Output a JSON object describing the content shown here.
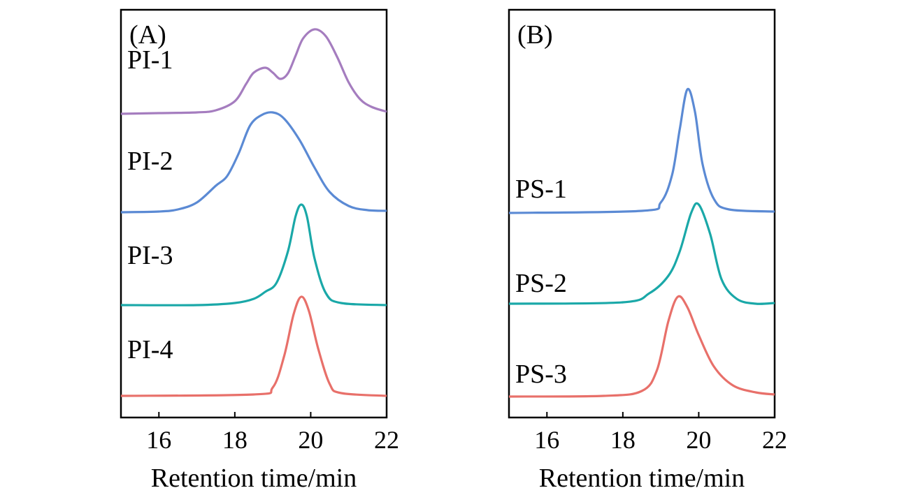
{
  "chart_data": [
    {
      "type": "line",
      "panel_label": "(A)",
      "xlabel": "Retention time/min",
      "ylabel": "",
      "xlim": [
        15,
        22
      ],
      "ylim": [
        0,
        5.84
      ],
      "xticks": [
        "16",
        "18",
        "20",
        "22"
      ],
      "xtick_values": [
        16,
        18,
        20,
        22
      ],
      "y_units": "relative intensity (stacked, arbitrary units)",
      "grid": false,
      "series": [
        {
          "name": "PI-1",
          "color": "#a57dbf",
          "label_y": 5.0,
          "points": [
            [
              15,
              4.35
            ],
            [
              16,
              4.36
            ],
            [
              17,
              4.37
            ],
            [
              17.5,
              4.4
            ],
            [
              18,
              4.53
            ],
            [
              18.3,
              4.78
            ],
            [
              18.5,
              4.94
            ],
            [
              18.8,
              5.01
            ],
            [
              19.0,
              4.94
            ],
            [
              19.2,
              4.85
            ],
            [
              19.4,
              4.93
            ],
            [
              19.6,
              5.18
            ],
            [
              19.8,
              5.43
            ],
            [
              20.1,
              5.56
            ],
            [
              20.4,
              5.46
            ],
            [
              20.7,
              5.16
            ],
            [
              21.0,
              4.8
            ],
            [
              21.3,
              4.56
            ],
            [
              21.6,
              4.45
            ],
            [
              22,
              4.38
            ]
          ]
        },
        {
          "name": "PI-2",
          "color": "#5b8ad4",
          "label_y": 3.55,
          "points": [
            [
              15,
              2.94
            ],
            [
              16,
              2.95
            ],
            [
              16.5,
              2.98
            ],
            [
              17,
              3.08
            ],
            [
              17.5,
              3.32
            ],
            [
              17.8,
              3.46
            ],
            [
              18.1,
              3.78
            ],
            [
              18.4,
              4.18
            ],
            [
              18.7,
              4.33
            ],
            [
              19.0,
              4.37
            ],
            [
              19.3,
              4.28
            ],
            [
              19.7,
              3.98
            ],
            [
              20.1,
              3.58
            ],
            [
              20.5,
              3.23
            ],
            [
              21,
              3.03
            ],
            [
              21.5,
              2.97
            ],
            [
              22,
              2.96
            ]
          ]
        },
        {
          "name": "PI-3",
          "color": "#1aa8a8",
          "label_y": 2.2,
          "points": [
            [
              15,
              1.61
            ],
            [
              17,
              1.61
            ],
            [
              18,
              1.64
            ],
            [
              18.5,
              1.7
            ],
            [
              18.8,
              1.8
            ],
            [
              19.1,
              1.93
            ],
            [
              19.4,
              2.38
            ],
            [
              19.6,
              2.88
            ],
            [
              19.75,
              3.05
            ],
            [
              19.9,
              2.88
            ],
            [
              20.1,
              2.28
            ],
            [
              20.4,
              1.78
            ],
            [
              20.8,
              1.64
            ],
            [
              22,
              1.61
            ]
          ]
        },
        {
          "name": "PI-4",
          "color": "#e8706a",
          "label_y": 0.85,
          "points": [
            [
              15,
              0.31
            ],
            [
              18.5,
              0.33
            ],
            [
              19.0,
              0.43
            ],
            [
              19.3,
              0.88
            ],
            [
              19.55,
              1.48
            ],
            [
              19.75,
              1.73
            ],
            [
              19.95,
              1.53
            ],
            [
              20.2,
              0.98
            ],
            [
              20.5,
              0.48
            ],
            [
              20.8,
              0.35
            ],
            [
              22,
              0.31
            ]
          ]
        }
      ]
    },
    {
      "type": "line",
      "panel_label": "(B)",
      "xlabel": "Retention time/min",
      "ylabel": "",
      "xlim": [
        15,
        22
      ],
      "ylim": [
        0,
        5.84
      ],
      "xticks": [
        "16",
        "18",
        "20",
        "22"
      ],
      "xtick_values": [
        16,
        18,
        20,
        22
      ],
      "y_units": "relative intensity (stacked, arbitrary units)",
      "grid": false,
      "series": [
        {
          "name": "PS-1",
          "color": "#5b8ad4",
          "label_y": 3.15,
          "points": [
            [
              15,
              2.93
            ],
            [
              18.5,
              2.96
            ],
            [
              19.0,
              3.08
            ],
            [
              19.3,
              3.48
            ],
            [
              19.5,
              4.13
            ],
            [
              19.7,
              4.7
            ],
            [
              19.9,
              4.38
            ],
            [
              20.1,
              3.63
            ],
            [
              20.4,
              3.13
            ],
            [
              20.8,
              2.98
            ],
            [
              22,
              2.95
            ]
          ]
        },
        {
          "name": "PS-2",
          "color": "#1aa8a8",
          "label_y": 1.8,
          "points": [
            [
              15,
              1.63
            ],
            [
              18,
              1.65
            ],
            [
              18.7,
              1.78
            ],
            [
              19.2,
              2.03
            ],
            [
              19.5,
              2.38
            ],
            [
              19.8,
              2.93
            ],
            [
              20.0,
              3.05
            ],
            [
              20.3,
              2.63
            ],
            [
              20.6,
              1.98
            ],
            [
              21.0,
              1.7
            ],
            [
              21.5,
              1.63
            ],
            [
              22,
              1.64
            ]
          ]
        },
        {
          "name": "PS-3",
          "color": "#e8706a",
          "label_y": 0.5,
          "points": [
            [
              15,
              0.3
            ],
            [
              17.5,
              0.31
            ],
            [
              18.5,
              0.38
            ],
            [
              18.9,
              0.68
            ],
            [
              19.2,
              1.38
            ],
            [
              19.45,
              1.73
            ],
            [
              19.7,
              1.58
            ],
            [
              20.0,
              1.18
            ],
            [
              20.4,
              0.73
            ],
            [
              20.9,
              0.46
            ],
            [
              21.5,
              0.36
            ],
            [
              22,
              0.33
            ]
          ]
        }
      ]
    }
  ]
}
